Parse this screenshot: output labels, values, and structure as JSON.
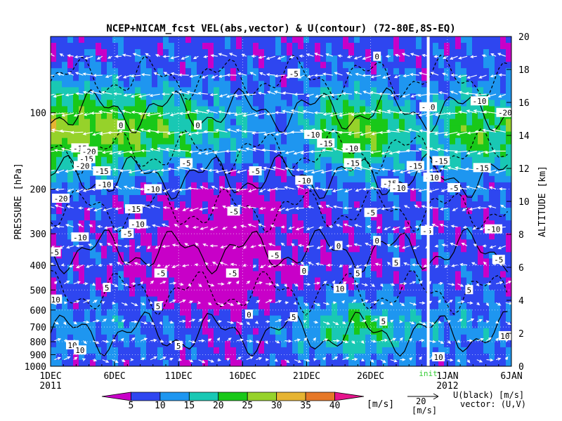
{
  "chart_data": {
    "type": "heatmap",
    "title": "NCEP+NICAM_fcst VEL(abs,vector) & U(contour)  (72-80E,8S-EQ)",
    "ylabel_left": "PRESSURE [hPa]",
    "ylabel_right": "ALTITUDE [km]",
    "x_ticks": [
      {
        "day": 0,
        "label": "1DEC",
        "sub": "2011"
      },
      {
        "day": 5,
        "label": "6DEC",
        "sub": ""
      },
      {
        "day": 10,
        "label": "11DEC",
        "sub": ""
      },
      {
        "day": 15,
        "label": "16DEC",
        "sub": ""
      },
      {
        "day": 20,
        "label": "21DEC",
        "sub": ""
      },
      {
        "day": 25,
        "label": "26DEC",
        "sub": ""
      },
      {
        "day": 31,
        "label": "1JAN",
        "sub": "2012"
      },
      {
        "day": 36,
        "label": "6JAN",
        "sub": ""
      }
    ],
    "x_range_days": [
      0,
      36
    ],
    "init_marker": {
      "day": 29.5,
      "label": "init"
    },
    "pressure_ticks": [
      100,
      200,
      300,
      400,
      500,
      600,
      700,
      800,
      900,
      1000
    ],
    "pressure_range": [
      1000,
      50
    ],
    "altitude_ticks": [
      0,
      2,
      4,
      6,
      8,
      10,
      12,
      14,
      16,
      18,
      20
    ],
    "colorbar": {
      "levels": [
        5,
        10,
        15,
        20,
        25,
        30,
        35,
        40
      ],
      "colors": [
        "#c800c8",
        "#2e46f0",
        "#1e96f0",
        "#19c8b4",
        "#19c819",
        "#96d22a",
        "#e6b432",
        "#e67828",
        "#e6148c"
      ],
      "unit": "[m/s]"
    },
    "legend_text": {
      "contour": "U(black) [m/s]",
      "vector": "vector: (U,V)",
      "ref_value": "20",
      "ref_unit": "[m/s]"
    },
    "contour_labels": [
      {
        "day": 33.5,
        "p": 90,
        "text": "-10"
      },
      {
        "day": 35.5,
        "p": 100,
        "text": "-20"
      },
      {
        "day": 29.5,
        "p": 95,
        "text": "-10"
      },
      {
        "day": 19,
        "p": 70,
        "text": "-5"
      },
      {
        "day": 25.5,
        "p": 60,
        "text": "0"
      },
      {
        "day": 11.5,
        "p": 112,
        "text": "0"
      },
      {
        "day": 5.5,
        "p": 112,
        "text": "0"
      },
      {
        "day": 20.5,
        "p": 122,
        "text": "-10"
      },
      {
        "day": 21.5,
        "p": 132,
        "text": "-15"
      },
      {
        "day": 23.5,
        "p": 138,
        "text": "-10"
      },
      {
        "day": 2.3,
        "p": 138,
        "text": "-15"
      },
      {
        "day": 3,
        "p": 142,
        "text": "-20"
      },
      {
        "day": 2.8,
        "p": 152,
        "text": "-15"
      },
      {
        "day": 2.5,
        "p": 162,
        "text": "-20"
      },
      {
        "day": 4,
        "p": 170,
        "text": "-15"
      },
      {
        "day": 4.2,
        "p": 192,
        "text": "-10"
      },
      {
        "day": 10.6,
        "p": 158,
        "text": "-5"
      },
      {
        "day": 16,
        "p": 170,
        "text": "-5"
      },
      {
        "day": 23.6,
        "p": 158,
        "text": "-15"
      },
      {
        "day": 30.5,
        "p": 155,
        "text": "-15"
      },
      {
        "day": 33.7,
        "p": 165,
        "text": "-15"
      },
      {
        "day": 28.5,
        "p": 162,
        "text": "-15"
      },
      {
        "day": 29.8,
        "p": 180,
        "text": "-10"
      },
      {
        "day": 19.8,
        "p": 185,
        "text": "-10"
      },
      {
        "day": 26.5,
        "p": 190,
        "text": "-15"
      },
      {
        "day": 27.2,
        "p": 198,
        "text": "-10"
      },
      {
        "day": 8,
        "p": 200,
        "text": "-10"
      },
      {
        "day": 31.5,
        "p": 198,
        "text": "-5"
      },
      {
        "day": 0.8,
        "p": 218,
        "text": "-20"
      },
      {
        "day": 6.5,
        "p": 240,
        "text": "-15"
      },
      {
        "day": 14.3,
        "p": 245,
        "text": "-5"
      },
      {
        "day": 25,
        "p": 248,
        "text": "-5"
      },
      {
        "day": 6.8,
        "p": 275,
        "text": "-10"
      },
      {
        "day": 34.6,
        "p": 288,
        "text": "-10"
      },
      {
        "day": 29.4,
        "p": 292,
        "text": "-5"
      },
      {
        "day": 6,
        "p": 300,
        "text": "-5"
      },
      {
        "day": 2.3,
        "p": 310,
        "text": "-10"
      },
      {
        "day": 25.5,
        "p": 320,
        "text": "0"
      },
      {
        "day": 22.5,
        "p": 335,
        "text": "0"
      },
      {
        "day": 0.3,
        "p": 355,
        "text": "-5"
      },
      {
        "day": 17.5,
        "p": 365,
        "text": "-5"
      },
      {
        "day": 35,
        "p": 380,
        "text": "-5"
      },
      {
        "day": 27,
        "p": 390,
        "text": "5"
      },
      {
        "day": 8.6,
        "p": 430,
        "text": "-5"
      },
      {
        "day": 14.2,
        "p": 430,
        "text": "-5"
      },
      {
        "day": 19.8,
        "p": 420,
        "text": "0"
      },
      {
        "day": 24,
        "p": 430,
        "text": "5"
      },
      {
        "day": 4.4,
        "p": 490,
        "text": "5"
      },
      {
        "day": 22.6,
        "p": 495,
        "text": "10"
      },
      {
        "day": 32.7,
        "p": 500,
        "text": "5"
      },
      {
        "day": 0.4,
        "p": 545,
        "text": "10"
      },
      {
        "day": 8.4,
        "p": 580,
        "text": "5"
      },
      {
        "day": 15.5,
        "p": 625,
        "text": "0"
      },
      {
        "day": 19,
        "p": 640,
        "text": "5"
      },
      {
        "day": 26,
        "p": 665,
        "text": "5"
      },
      {
        "day": 35.5,
        "p": 760,
        "text": "10"
      },
      {
        "day": 1.7,
        "p": 825,
        "text": "10"
      },
      {
        "day": 2.3,
        "p": 865,
        "text": "10"
      },
      {
        "day": 10,
        "p": 830,
        "text": "5"
      },
      {
        "day": 30.3,
        "p": 920,
        "text": "10"
      }
    ]
  }
}
